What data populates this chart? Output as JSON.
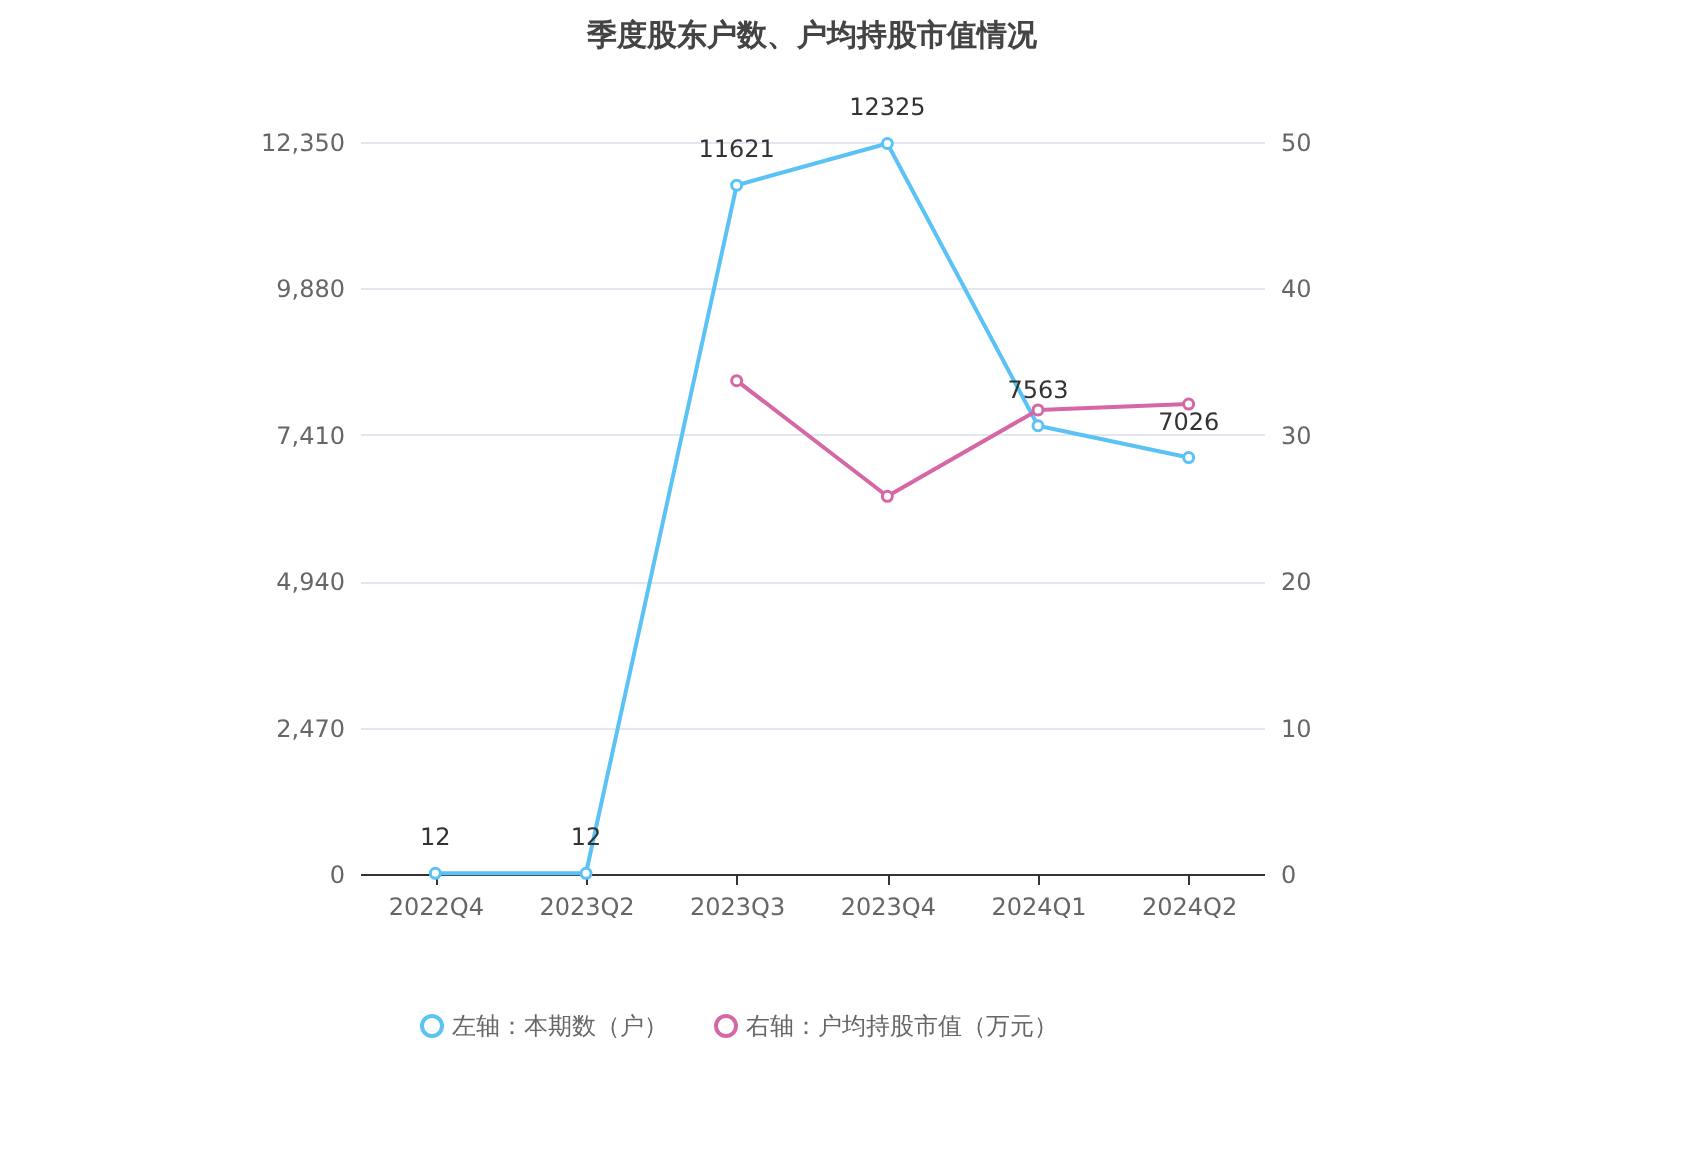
{
  "chart_data": {
    "type": "line",
    "title": "季度股东户数、户均持股市值情况",
    "categories": [
      "2022Q4",
      "2023Q2",
      "2023Q3",
      "2023Q4",
      "2024Q1",
      "2024Q2"
    ],
    "series": [
      {
        "name": "左轴：本期数（户）",
        "color": "#5bc2f5",
        "values": [
          12,
          12,
          11621,
          12325,
          7563,
          7026
        ],
        "value_labels": [
          "12",
          "12",
          "11621",
          "12325",
          "7563",
          "7026"
        ]
      },
      {
        "name": "右轴：户均持股市值（万元）",
        "color": "#d667a6",
        "values": [
          null,
          null,
          33.7,
          25.8,
          31.7,
          32.1
        ],
        "axis": "y2"
      }
    ],
    "ylim": [
      0,
      12350
    ],
    "yticks": [
      0,
      {
        "value": 2470,
        "label": "2,470"
      },
      {
        "value": 4940,
        "label": "4,940"
      },
      {
        "value": 7410,
        "label": "7,410"
      },
      {
        "value": 9880,
        "label": "9,880"
      },
      {
        "value": 12350,
        "label": "12,350"
      }
    ],
    "y2lim": [
      0,
      50
    ],
    "y2ticks": [
      0,
      10,
      20,
      30,
      40,
      50
    ],
    "grid": "y",
    "legend": "bottom",
    "marker": "circle",
    "line_style": "solid"
  }
}
